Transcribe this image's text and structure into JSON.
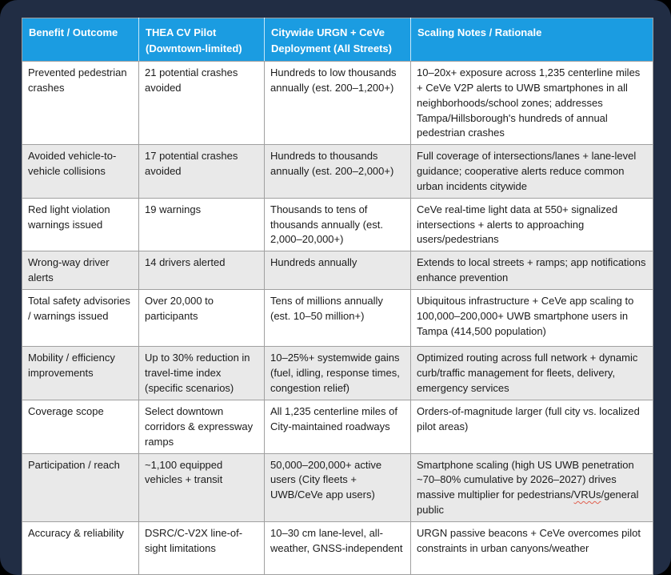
{
  "colors": {
    "header-blue": "#1b9ce1",
    "frame-navy": "#212d44",
    "alt-row": "#e9e9e9",
    "grid-line": "#a0a0a0",
    "text-dark": "#1b1b1b",
    "squiggle-red": "#e06050"
  },
  "table": {
    "headers": [
      "Benefit / Outcome",
      "THEA CV Pilot (Downtown-limited)",
      "Citywide URGN + CeVe Deployment (All Streets)",
      "Scaling Notes / Rationale"
    ],
    "rows": [
      [
        "Prevented pedestrian crashes",
        "21 potential crashes avoided",
        "Hundreds to low thousands annually (est. 200–1,200+)",
        "10–20x+ exposure across 1,235 centerline miles + CeVe V2P alerts to UWB smartphones in all neighborhoods/school zones; addresses Tampa/Hillsborough's hundreds of annual pedestrian crashes"
      ],
      [
        "Avoided vehicle-to-vehicle collisions",
        "17 potential crashes avoided",
        "Hundreds to thousands annually (est. 200–2,000+)",
        "Full coverage of intersections/lanes + lane-level guidance; cooperative alerts reduce common urban incidents citywide"
      ],
      [
        "Red light violation warnings issued",
        "19 warnings",
        "Thousands to tens of thousands annually (est. 2,000–20,000+)",
        "CeVe real-time light data at 550+ signalized intersections + alerts to approaching users/pedestrians"
      ],
      [
        "Wrong-way driver alerts",
        "14 drivers alerted",
        "Hundreds annually",
        "Extends to local streets + ramps; app notifications enhance prevention"
      ],
      [
        "Total safety advisories / warnings issued",
        "Over 20,000 to participants",
        "Tens of millions annually (est. 10–50 million+)",
        "Ubiquitous infrastructure + CeVe app scaling to 100,000–200,000+ UWB smartphone users in Tampa (414,500 population)"
      ],
      [
        "Mobility / efficiency improvements",
        "Up to 30% reduction in travel-time index (specific scenarios)",
        "10–25%+ systemwide gains (fuel, idling, response times, congestion relief)",
        "Optimized routing across full network + dynamic curb/traffic management for fleets, delivery, emergency services"
      ],
      [
        "Coverage scope",
        "Select downtown corridors & expressway ramps",
        "All 1,235 centerline miles of City-maintained roadways",
        "Orders-of-magnitude larger (full city vs. localized pilot areas)"
      ],
      [
        "Participation / reach",
        "~1,100 equipped vehicles + transit",
        "50,000–200,000+ active users (City fleets + UWB/CeVe app users)",
        "Smartphone scaling (high US UWB penetration ~70–80% cumulative by 2026–2027) drives massive multiplier for pedestrians/VRUs/general public"
      ],
      [
        "Accuracy & reliability",
        "DSRC/C-V2X line-of-sight limitations",
        "10–30 cm lane-level, all-weather, GNSS-independent",
        "URGN passive beacons + CeVe overcomes pilot constraints in urban canyons/weather"
      ]
    ]
  },
  "spellcheck_flagged_words": [
    "VRUs"
  ]
}
